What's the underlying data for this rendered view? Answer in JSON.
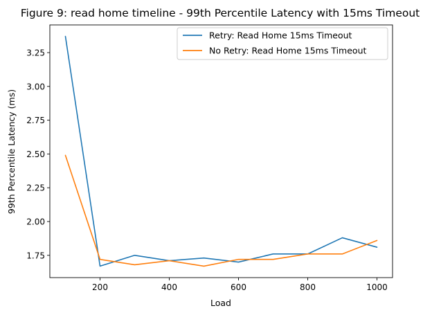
{
  "chart_data": {
    "type": "line",
    "title": "Figure 9: read home timeline - 99th Percentile Latency with 15ms Timeout",
    "xlabel": "Load",
    "ylabel": "99th Percentile Latency (ms)",
    "x": [
      100,
      200,
      300,
      400,
      500,
      600,
      700,
      800,
      900,
      1000
    ],
    "xlim": [
      55,
      1045
    ],
    "ylim": [
      1.585,
      3.455
    ],
    "xticks": [
      200,
      400,
      600,
      800,
      1000
    ],
    "yticks": [
      1.75,
      2.0,
      2.25,
      2.5,
      2.75,
      3.0,
      3.25
    ],
    "xtick_labels": [
      "200",
      "400",
      "600",
      "800",
      "1000"
    ],
    "ytick_labels": [
      "1.75",
      "2.00",
      "2.25",
      "2.50",
      "2.75",
      "3.00",
      "3.25"
    ],
    "grid": false,
    "legend_position": "top-right",
    "series": [
      {
        "name": "Retry: Read Home 15ms Timeout",
        "color": "#1f77b4",
        "values": [
          3.37,
          1.67,
          1.75,
          1.71,
          1.73,
          1.7,
          1.76,
          1.76,
          1.88,
          1.81
        ]
      },
      {
        "name": "No Retry: Read Home 15ms Timeout",
        "color": "#ff7f0e",
        "values": [
          2.49,
          1.72,
          1.68,
          1.71,
          1.67,
          1.72,
          1.72,
          1.76,
          1.76,
          1.86
        ]
      }
    ]
  }
}
